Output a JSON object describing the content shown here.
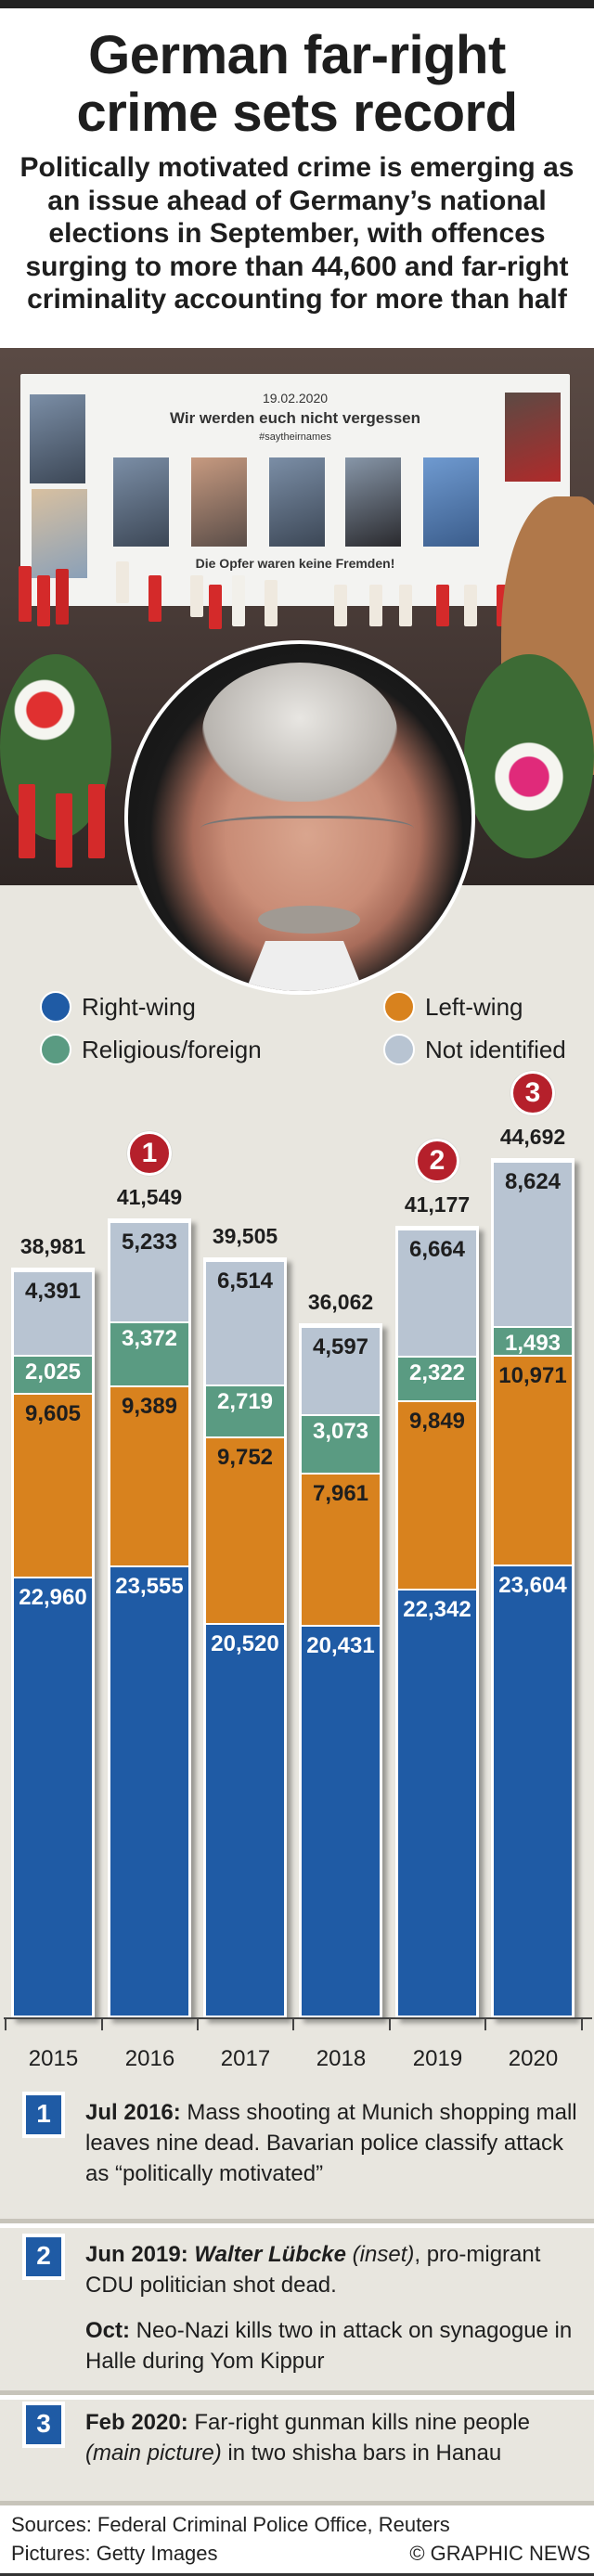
{
  "header": {
    "title_line1": "German far-right",
    "title_line2": "crime sets record",
    "subtitle": "Politically motivated crime is emerging as an issue ahead of Germany’s national elections in September, with offences surging to more than 44,600 and far-right criminality accounting for more than half"
  },
  "photo": {
    "banner_date": "19.02.2020",
    "banner_heading": "Wir werden euch nicht vergessen",
    "banner_hashtag": "#saytheirnames",
    "banner_footer": "Die Opfer waren keine Fremden!"
  },
  "legend": [
    {
      "label": "Right-wing",
      "color": "#1f5ba5"
    },
    {
      "label": "Left-wing",
      "color": "#d8821e"
    },
    {
      "label": "Religious/foreign",
      "color": "#5a9b82"
    },
    {
      "label": "Not identified",
      "color": "#b8c4d2"
    }
  ],
  "chart_data": {
    "type": "bar",
    "stacked": true,
    "categories": [
      "2015",
      "2016",
      "2017",
      "2018",
      "2019",
      "2020"
    ],
    "series": [
      {
        "name": "Right-wing",
        "color": "#1f5ba5",
        "label_color": "#ffffff",
        "values": [
          22960,
          23555,
          20520,
          20431,
          22342,
          23604
        ],
        "labels": [
          "22,960",
          "23,555",
          "20,520",
          "20,431",
          "22,342",
          "23,604"
        ]
      },
      {
        "name": "Left-wing",
        "color": "#d8821e",
        "label_color": "#1e1e1e",
        "values": [
          9605,
          9389,
          9752,
          7961,
          9849,
          10971
        ],
        "labels": [
          "9,605",
          "9,389",
          "9,752",
          "7,961",
          "9,849",
          "10,971"
        ]
      },
      {
        "name": "Religious/foreign",
        "color": "#5a9b82",
        "label_color": "#ffffff",
        "values": [
          2025,
          3372,
          2719,
          3073,
          2322,
          1493
        ],
        "labels": [
          "2,025",
          "3,372",
          "2,719",
          "3,073",
          "2,322",
          "1,493"
        ]
      },
      {
        "name": "Not identified",
        "color": "#b8c4d2",
        "label_color": "#1e1e1e",
        "values": [
          4391,
          5233,
          6514,
          4597,
          6664,
          8624
        ],
        "labels": [
          "4,391",
          "5,233",
          "6,514",
          "4,597",
          "6,664",
          "8,624"
        ]
      }
    ],
    "totals": [
      38981,
      41549,
      39505,
      36062,
      41177,
      44692
    ],
    "total_labels": [
      "38,981",
      "41,549",
      "39,505",
      "36,062",
      "41,177",
      "44,692"
    ],
    "markers": [
      {
        "category": "2016",
        "label": "1"
      },
      {
        "category": "2019",
        "label": "2"
      },
      {
        "category": "2020",
        "label": "3"
      }
    ],
    "ylim": [
      0,
      44692
    ],
    "grid": false,
    "legend_position": "top"
  },
  "notes": [
    {
      "num": "1",
      "parts": [
        {
          "b": "Jul 2016:"
        },
        {
          "t": " Mass shooting at Munich shopping mall leaves nine dead. Bavarian police classify attack as “politically motivated”"
        }
      ]
    },
    {
      "num": "2",
      "parts": [
        {
          "b": "Jun 2019: "
        },
        {
          "bi": "Walter Lübcke"
        },
        {
          "i": " (inset)"
        },
        {
          "t": ", pro-migrant CDU politician shot dead."
        }
      ],
      "parts2": [
        {
          "b": "Oct:"
        },
        {
          "t": " Neo-Nazi kills two in attack on synagogue in Halle during Yom Kippur"
        }
      ]
    },
    {
      "num": "3",
      "parts": [
        {
          "b": "Feb 2020:"
        },
        {
          "t": " Far-right gunman kills nine people "
        },
        {
          "i": "(main picture)"
        },
        {
          "t": " in two shisha bars in Hanau"
        }
      ]
    }
  ],
  "footer": {
    "sources": "Sources: Federal Criminal Police Office, Reuters",
    "pictures": "Pictures: Getty Images",
    "credit": "© GRAPHIC NEWS"
  }
}
